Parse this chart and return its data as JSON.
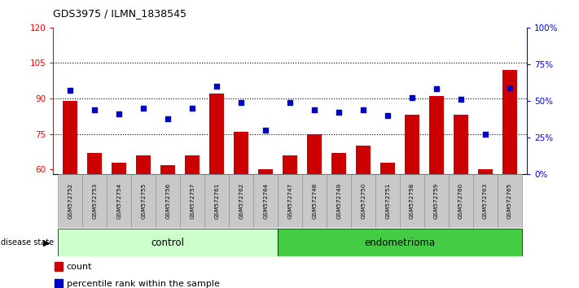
{
  "title": "GDS3975 / ILMN_1838545",
  "samples": [
    "GSM572752",
    "GSM572753",
    "GSM572754",
    "GSM572755",
    "GSM572756",
    "GSM572757",
    "GSM572761",
    "GSM572762",
    "GSM572764",
    "GSM572747",
    "GSM572748",
    "GSM572749",
    "GSM572750",
    "GSM572751",
    "GSM572758",
    "GSM572759",
    "GSM572760",
    "GSM572763",
    "GSM572765"
  ],
  "bar_values": [
    89,
    67,
    63,
    66,
    62,
    66,
    92,
    76,
    60,
    66,
    75,
    67,
    70,
    63,
    83,
    91,
    83,
    60,
    102
  ],
  "blue_values": [
    57,
    44,
    41,
    45,
    38,
    45,
    60,
    49,
    30,
    49,
    44,
    42,
    44,
    40,
    52,
    58,
    51,
    27,
    59
  ],
  "control_count": 9,
  "endometrioma_count": 10,
  "ylim_left": [
    58,
    120
  ],
  "ylim_right": [
    0,
    100
  ],
  "yticks_left": [
    60,
    75,
    90,
    105,
    120
  ],
  "yticks_right": [
    0,
    25,
    50,
    75,
    100
  ],
  "ytick_labels_right": [
    "0%",
    "25%",
    "50%",
    "75%",
    "100%"
  ],
  "bar_color": "#cc0000",
  "blue_color": "#0000cc",
  "control_bg": "#ccffcc",
  "endometrioma_bg": "#44cc44",
  "sample_box_bg": "#c8c8c8",
  "dotted_lines": [
    75,
    90,
    105
  ]
}
